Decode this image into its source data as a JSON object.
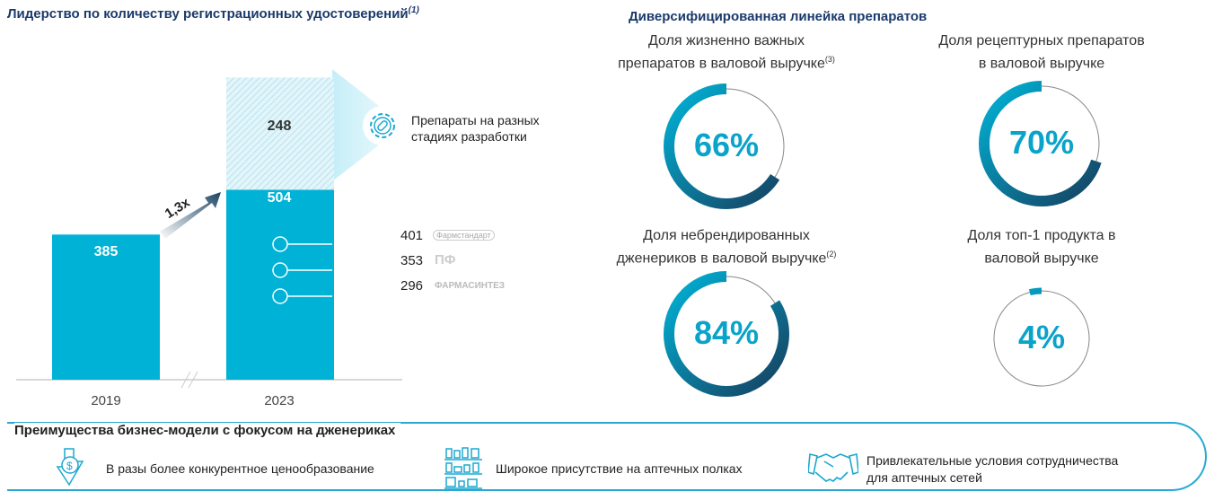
{
  "left": {
    "title": "Лидерство по количеству регистрационных удостоверений",
    "title_note": "(1)",
    "growth_label": "1,3x",
    "pipeline_label_line1": "Препараты на разных",
    "pipeline_label_line2": "стадиях разработки",
    "competitors": [
      {
        "value": "401",
        "logo": "Фармстандарт"
      },
      {
        "value": "353",
        "logo": "ПФ"
      },
      {
        "value": "296",
        "logo": "ФАРМАСИНТЕЗ"
      }
    ]
  },
  "right": {
    "title": "Диверсифицированная линейка препаратов"
  },
  "bottom": {
    "title": "Преимущества бизнес-модели с фокусом на дженериках",
    "items": [
      {
        "text": "В разы более конкурентное ценообразование",
        "icon": "price-down-icon"
      },
      {
        "text": "Широкое присутствие на аптечных полках",
        "icon": "pharmacy-shelves-icon"
      },
      {
        "text": "Привлекательные условия сотрудничества",
        "text2": "для аптечных сетей",
        "icon": "handshake-icon"
      }
    ]
  },
  "colors": {
    "bar": "#00b2d6",
    "dark": "#14496a",
    "title": "#1b3a6b"
  },
  "chart_data": [
    {
      "type": "bar",
      "title": "Лидерство по количеству регистрационных удостоверений",
      "categories": [
        "2019",
        "2023"
      ],
      "series": [
        {
          "name": "Регистрационные удостоверения",
          "values": [
            385,
            504
          ]
        },
        {
          "name": "Препараты на разных стадиях разработки",
          "values": [
            null,
            248
          ]
        }
      ],
      "value_labels": [
        "385",
        "504",
        "248"
      ],
      "competitor_markers": [
        401,
        353,
        296
      ]
    },
    {
      "type": "pie",
      "title": "Диверсифицированная линейка препаратов",
      "donuts": [
        {
          "label1": "Доля жизненно важных",
          "label2": "препаратов в валовой выручке",
          "note": "(3)",
          "value": 66,
          "text": "66%"
        },
        {
          "label1": "Доля рецептурных препаратов",
          "label2": "в валовой выручке",
          "note": "",
          "value": 70,
          "text": "70%"
        },
        {
          "label1": "Доля небрендированных",
          "label2": "дженериков в валовой выручке",
          "note": "(2)",
          "value": 84,
          "text": "84%"
        },
        {
          "label1": "Доля топ-1 продукта в",
          "label2": "валовой выручке",
          "note": "",
          "value": 4,
          "text": "4%"
        }
      ]
    }
  ]
}
